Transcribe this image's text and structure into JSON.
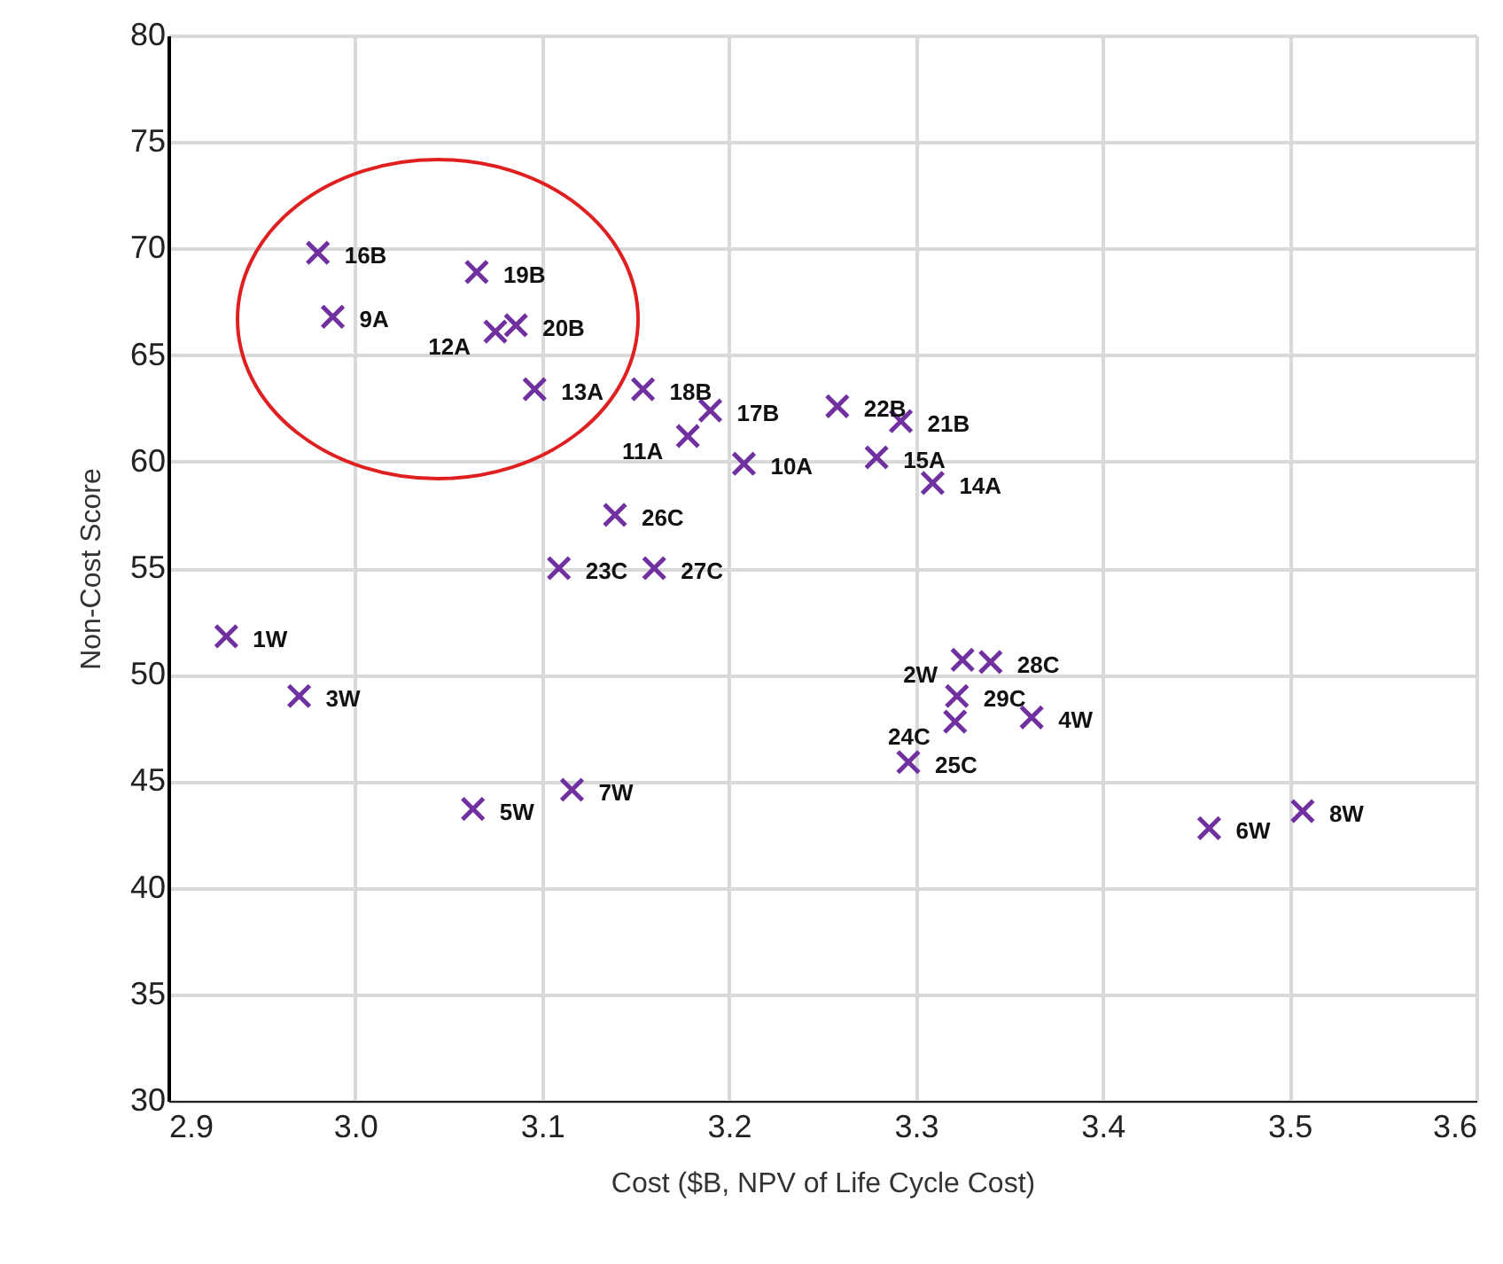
{
  "chart_data": {
    "type": "scatter",
    "xlabel": "Cost ($B, NPV of Life Cycle Cost)",
    "ylabel": "Non-Cost Score",
    "x": [
      2.98,
      2.988,
      3.065,
      3.075,
      3.086,
      3.096,
      3.154,
      3.19,
      3.178,
      3.208,
      3.258,
      3.292,
      3.279,
      3.309,
      3.139,
      3.109,
      3.16,
      2.931,
      2.97,
      3.063,
      3.116,
      3.325,
      3.34,
      3.322,
      3.321,
      3.296,
      3.362,
      3.457,
      3.507
    ],
    "series": [
      {
        "color": "#7030a0",
        "values": [
          69.8,
          66.8,
          68.9,
          66.1,
          66.4,
          63.4,
          63.4,
          62.4,
          61.2,
          59.9,
          62.6,
          61.9,
          60.2,
          59.0,
          57.5,
          55.0,
          55.0,
          51.8,
          49.0,
          43.7,
          44.6,
          50.7,
          50.6,
          49.0,
          47.8,
          45.9,
          48.0,
          42.8,
          43.6
        ]
      }
    ],
    "annotations": [
      {
        "text": "16B",
        "x": 2.98,
        "y": 69.8
      },
      {
        "text": "9A",
        "x": 2.988,
        "y": 66.8
      },
      {
        "text": "19B",
        "x": 3.065,
        "y": 68.9
      },
      {
        "text": "12A",
        "x": 3.075,
        "y": 66.1
      },
      {
        "text": "20B",
        "x": 3.086,
        "y": 66.4
      },
      {
        "text": "13A",
        "x": 3.096,
        "y": 63.4
      },
      {
        "text": "18B",
        "x": 3.154,
        "y": 63.4
      },
      {
        "text": "17B",
        "x": 3.19,
        "y": 62.4
      },
      {
        "text": "11A",
        "x": 3.178,
        "y": 61.2
      },
      {
        "text": "10A",
        "x": 3.208,
        "y": 59.9
      },
      {
        "text": "22B",
        "x": 3.258,
        "y": 62.6
      },
      {
        "text": "21B",
        "x": 3.292,
        "y": 61.9
      },
      {
        "text": "15A",
        "x": 3.279,
        "y": 60.2
      },
      {
        "text": "14A",
        "x": 3.309,
        "y": 59.0
      },
      {
        "text": "26C",
        "x": 3.139,
        "y": 57.5
      },
      {
        "text": "23C",
        "x": 3.109,
        "y": 55.0
      },
      {
        "text": "27C",
        "x": 3.16,
        "y": 55.0
      },
      {
        "text": "1W",
        "x": 2.931,
        "y": 51.8
      },
      {
        "text": "3W",
        "x": 2.97,
        "y": 49.0
      },
      {
        "text": "5W",
        "x": 3.063,
        "y": 43.7
      },
      {
        "text": "7W",
        "x": 3.116,
        "y": 44.6
      },
      {
        "text": "2W",
        "x": 3.325,
        "y": 50.7
      },
      {
        "text": "28C",
        "x": 3.34,
        "y": 50.6
      },
      {
        "text": "29C",
        "x": 3.322,
        "y": 49.0
      },
      {
        "text": "24C",
        "x": 3.321,
        "y": 47.8
      },
      {
        "text": "25C",
        "x": 3.296,
        "y": 45.9
      },
      {
        "text": "4W",
        "x": 3.362,
        "y": 48.0
      },
      {
        "text": "6W",
        "x": 3.457,
        "y": 42.8
      },
      {
        "text": "8W",
        "x": 3.507,
        "y": 43.6
      }
    ],
    "xlim": [
      2.9,
      3.6
    ],
    "xticks": [
      2.9,
      {
        "value": 3,
        "label": "3.0"
      },
      3.1,
      3.2,
      3.3,
      3.4,
      3.5,
      3.6
    ],
    "ylim": [
      30,
      80
    ],
    "yticks": [
      30,
      35,
      40,
      45,
      50,
      55,
      60,
      65,
      70,
      75,
      80
    ],
    "grid": true,
    "marker": "cross"
  }
}
